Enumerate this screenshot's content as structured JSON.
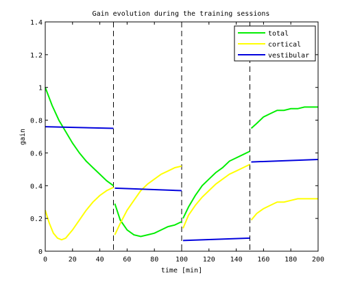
{
  "chart_data": {
    "type": "line",
    "title": "Gain evolution during the training sessions",
    "xlabel": "time [min]",
    "ylabel": "gain",
    "xlim": [
      0,
      200
    ],
    "ylim": [
      0,
      1.4
    ],
    "xticks": [
      0,
      20,
      40,
      60,
      80,
      100,
      120,
      140,
      160,
      180,
      200
    ],
    "yticks": [
      0,
      0.2,
      0.4,
      0.6,
      0.8,
      1,
      1.2,
      1.4
    ],
    "xtick_labels": [
      "0",
      "20",
      "40",
      "60",
      "80",
      "100",
      "120",
      "140",
      "160",
      "180",
      "200"
    ],
    "ytick_labels": [
      "0",
      "0.2",
      "0.4",
      "0.6",
      "0.8",
      "1",
      "1.2",
      "1.4"
    ],
    "session_boundaries": [
      50,
      100,
      150,
      200
    ],
    "grid": false,
    "legend_position": "top-right",
    "series": [
      {
        "name": "total",
        "color": "#00ee00",
        "segments": [
          {
            "x": [
              0,
              5,
              10,
              15,
              20,
              25,
              30,
              35,
              40,
              45,
              50
            ],
            "y": [
              1.0,
              0.89,
              0.8,
              0.73,
              0.66,
              0.6,
              0.55,
              0.51,
              0.47,
              0.43,
              0.4
            ]
          },
          {
            "x": [
              51,
              55,
              60,
              65,
              70,
              75,
              80,
              85,
              90,
              95,
              100
            ],
            "y": [
              0.29,
              0.19,
              0.13,
              0.1,
              0.09,
              0.1,
              0.11,
              0.13,
              0.15,
              0.16,
              0.18
            ]
          },
          {
            "x": [
              101,
              105,
              110,
              115,
              120,
              125,
              130,
              135,
              140,
              145,
              150
            ],
            "y": [
              0.2,
              0.27,
              0.34,
              0.4,
              0.44,
              0.48,
              0.51,
              0.55,
              0.57,
              0.59,
              0.61
            ]
          },
          {
            "x": [
              151,
              155,
              160,
              165,
              170,
              175,
              180,
              185,
              190,
              195,
              200
            ],
            "y": [
              0.75,
              0.78,
              0.82,
              0.84,
              0.86,
              0.86,
              0.87,
              0.87,
              0.88,
              0.88,
              0.88
            ]
          }
        ]
      },
      {
        "name": "cortical",
        "color": "#ffff00",
        "segments": [
          {
            "x": [
              0,
              3,
              6,
              9,
              12,
              15,
              20,
              25,
              30,
              35,
              40,
              45,
              50
            ],
            "y": [
              0.25,
              0.17,
              0.11,
              0.08,
              0.07,
              0.08,
              0.13,
              0.19,
              0.25,
              0.3,
              0.34,
              0.37,
              0.39
            ]
          },
          {
            "x": [
              51,
              55,
              60,
              65,
              70,
              75,
              80,
              85,
              90,
              95,
              100
            ],
            "y": [
              0.1,
              0.17,
              0.25,
              0.31,
              0.37,
              0.41,
              0.44,
              0.47,
              0.49,
              0.51,
              0.52
            ]
          },
          {
            "x": [
              101,
              105,
              110,
              115,
              120,
              125,
              130,
              135,
              140,
              145,
              150
            ],
            "y": [
              0.14,
              0.22,
              0.28,
              0.33,
              0.37,
              0.41,
              0.44,
              0.47,
              0.49,
              0.51,
              0.53
            ]
          },
          {
            "x": [
              151,
              155,
              160,
              165,
              170,
              175,
              180,
              185,
              190,
              195,
              200
            ],
            "y": [
              0.19,
              0.23,
              0.26,
              0.28,
              0.3,
              0.3,
              0.31,
              0.32,
              0.32,
              0.32,
              0.32
            ]
          }
        ]
      },
      {
        "name": "vestibular",
        "color": "#0000dd",
        "segments": [
          {
            "x": [
              0,
              50
            ],
            "y": [
              0.76,
              0.75
            ]
          },
          {
            "x": [
              51,
              100
            ],
            "y": [
              0.385,
              0.37
            ]
          },
          {
            "x": [
              101,
              150
            ],
            "y": [
              0.065,
              0.08
            ]
          },
          {
            "x": [
              151,
              200
            ],
            "y": [
              0.545,
              0.56
            ]
          }
        ]
      }
    ]
  }
}
